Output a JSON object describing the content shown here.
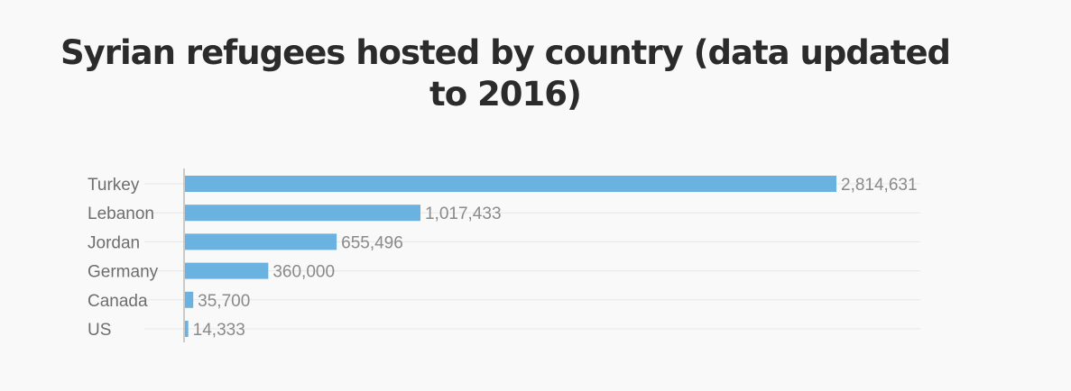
{
  "chart_data": {
    "type": "bar",
    "orientation": "horizontal",
    "title": "Syrian refugees hosted by country (data updated to 2016)",
    "categories": [
      "Turkey",
      "Lebanon",
      "Jordan",
      "Germany",
      "Canada",
      "US"
    ],
    "values": [
      2814631,
      1017433,
      655496,
      360000,
      35700,
      14333
    ],
    "value_labels": [
      "2,814,631",
      "1,017,433",
      "655,496",
      "360,000",
      "35,700",
      "14,333"
    ],
    "xlim": [
      0,
      2814631
    ],
    "bar_color": "#6ab2e0",
    "grid": true,
    "legend": "none"
  }
}
